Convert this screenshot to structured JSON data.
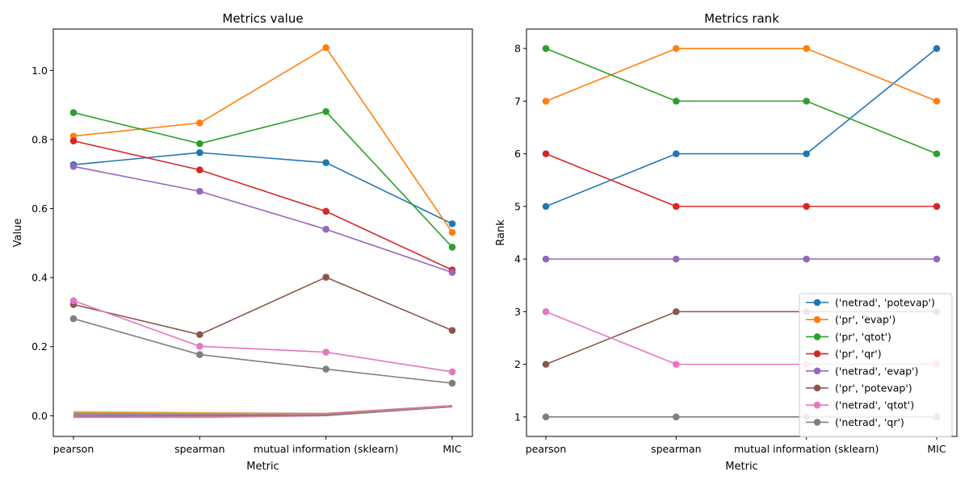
{
  "chart_data": [
    {
      "type": "line",
      "title": "Metrics value",
      "xlabel": "Metric",
      "ylabel": "Value",
      "categories": [
        "pearson",
        "spearman",
        "mutual information (sklearn)",
        "MIC"
      ],
      "ylim": [
        -0.06,
        1.12
      ],
      "yticks": [
        "0.0",
        "0.2",
        "0.4",
        "0.6",
        "0.8",
        "1.0"
      ],
      "series": [
        {
          "color": "#1f77b4",
          "values": [
            0.727,
            0.762,
            0.733,
            0.556
          ]
        },
        {
          "color": "#ff7f0e",
          "values": [
            0.81,
            0.848,
            1.066,
            0.531
          ]
        },
        {
          "color": "#2ca02c",
          "values": [
            0.878,
            0.788,
            0.881,
            0.488
          ]
        },
        {
          "color": "#d62728",
          "values": [
            0.796,
            0.712,
            0.592,
            0.422
          ]
        },
        {
          "color": "#9467bd",
          "values": [
            0.722,
            0.65,
            0.54,
            0.415
          ]
        },
        {
          "color": "#8c564b",
          "values": [
            0.322,
            0.235,
            0.401,
            0.247
          ]
        },
        {
          "color": "#e377c2",
          "values": [
            0.333,
            0.201,
            0.184,
            0.127
          ]
        },
        {
          "color": "#7f7f7f",
          "values": [
            0.281,
            0.177,
            0.135,
            0.094
          ]
        }
      ],
      "background_lines": [
        {
          "color": "#8c564b",
          "values": [
            0.008,
            0.006,
            0.005,
            0.028
          ]
        },
        {
          "color": "#d62728",
          "values": [
            -0.004,
            -0.004,
            0.001,
            0.027
          ]
        },
        {
          "color": "#7f7f7f",
          "values": [
            0.003,
            0.001,
            0.004,
            0.028
          ]
        },
        {
          "color": "#bcbd22",
          "values": [
            0.011,
            0.008,
            0.006,
            0.028
          ]
        },
        {
          "color": "#17becf",
          "values": [
            0.006,
            0.004,
            0.003,
            0.027
          ]
        },
        {
          "color": "#1f77b4",
          "values": [
            0.001,
            0.002,
            0.002,
            0.027
          ]
        },
        {
          "color": "#2ca02c",
          "values": [
            0.005,
            0.003,
            0.004,
            0.028
          ]
        },
        {
          "color": "#9467bd",
          "values": [
            -0.002,
            0.0,
            0.003,
            0.027
          ]
        },
        {
          "color": "#ff7f0e",
          "values": [
            0.009,
            0.007,
            0.005,
            0.028
          ]
        },
        {
          "color": "#e377c2",
          "values": [
            0.004,
            0.005,
            0.006,
            0.028
          ]
        }
      ]
    },
    {
      "type": "line",
      "title": "Metrics rank",
      "xlabel": "Metric",
      "ylabel": "Rank",
      "categories": [
        "pearson",
        "spearman",
        "mutual information (sklearn)",
        "MIC"
      ],
      "ylim": [
        0.63,
        8.37
      ],
      "yticks": [
        "1",
        "2",
        "3",
        "4",
        "5",
        "6",
        "7",
        "8"
      ],
      "legend_position": "lower-right",
      "series": [
        {
          "name": "('netrad', 'potevap')",
          "color": "#1f77b4",
          "values": [
            5,
            6,
            6,
            8
          ]
        },
        {
          "name": "('pr', 'evap')",
          "color": "#ff7f0e",
          "values": [
            7,
            8,
            8,
            7
          ]
        },
        {
          "name": "('pr', 'qtot')",
          "color": "#2ca02c",
          "values": [
            8,
            7,
            7,
            6
          ]
        },
        {
          "name": "('pr', 'qr')",
          "color": "#d62728",
          "values": [
            6,
            5,
            5,
            5
          ]
        },
        {
          "name": "('netrad', 'evap')",
          "color": "#9467bd",
          "values": [
            4,
            4,
            4,
            4
          ]
        },
        {
          "name": "('pr', 'potevap')",
          "color": "#8c564b",
          "values": [
            2,
            3,
            3,
            3
          ]
        },
        {
          "name": "('netrad', 'qtot')",
          "color": "#e377c2",
          "values": [
            3,
            2,
            2,
            2
          ]
        },
        {
          "name": "('netrad', 'qr')",
          "color": "#7f7f7f",
          "values": [
            1,
            1,
            1,
            1
          ]
        }
      ]
    }
  ]
}
